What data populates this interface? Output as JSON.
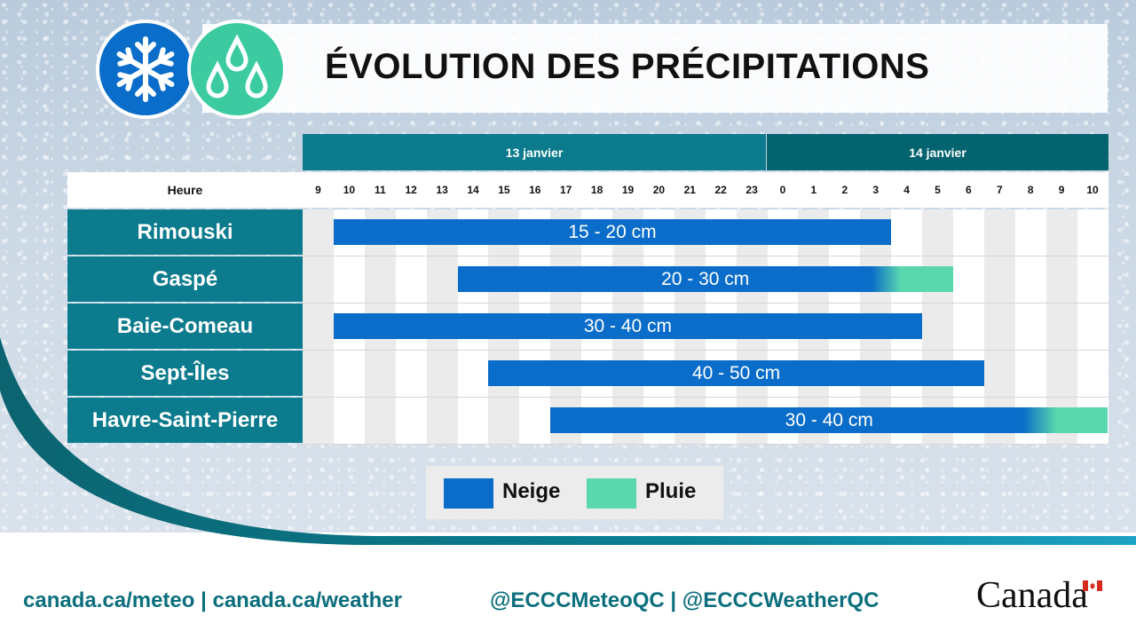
{
  "header": {
    "title": "ÉVOLUTION DES PRÉCIPITATIONS",
    "icons": [
      "snowflake-icon",
      "raindrops-icon"
    ]
  },
  "table": {
    "dates": [
      "13 janvier",
      "14 janvier"
    ],
    "hour_label": "Heure",
    "hours": [
      "9",
      "10",
      "11",
      "12",
      "13",
      "14",
      "15",
      "16",
      "17",
      "18",
      "19",
      "20",
      "21",
      "22",
      "23",
      "0",
      "1",
      "2",
      "3",
      "4",
      "5",
      "6",
      "7",
      "8",
      "9",
      "10"
    ],
    "rows": [
      {
        "location": "Rimouski",
        "amount": "15 - 20 cm",
        "snow": [
          "13 janvier 10",
          "14 janvier 3"
        ]
      },
      {
        "location": "Gaspé",
        "amount": "20 - 30 cm",
        "snow": [
          "13 janvier 14",
          "14 janvier 3"
        ],
        "rain": [
          "14 janvier 3",
          "14 janvier 5"
        ]
      },
      {
        "location": "Baie-Comeau",
        "amount": "30 - 40 cm",
        "snow": [
          "13 janvier 10",
          "14 janvier 4"
        ]
      },
      {
        "location": "Sept-Îles",
        "amount": "40 - 50 cm",
        "snow": [
          "13 janvier 15",
          "14 janvier 6"
        ]
      },
      {
        "location": "Havre-Saint-Pierre",
        "amount": "30 - 40 cm",
        "snow": [
          "13 janvier 17",
          "14 janvier 8"
        ],
        "rain": [
          "14 janvier 8",
          "14 janvier 10"
        ]
      }
    ]
  },
  "legend": {
    "snow_label": "Neige",
    "rain_label": "Pluie"
  },
  "colors": {
    "snow": "#0a6dc9",
    "rain": "#5ad8ad",
    "teal": "#0b7b8d",
    "dark_teal": "#03636f"
  },
  "footer": {
    "links": "canada.ca/meteo | canada.ca/weather",
    "social": "@ECCCMeteoQC | @ECCCWeatherQC",
    "wordmark": "Canada"
  }
}
